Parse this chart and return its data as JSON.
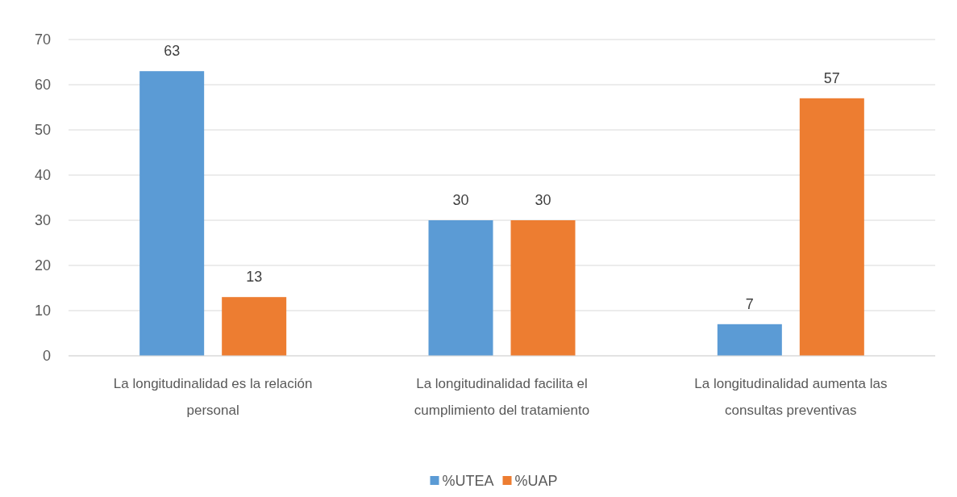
{
  "chart_data": {
    "type": "bar",
    "categories": [
      "La longitudinalidad es la relación personal",
      "La longitudinalidad facilita el cumplimiento del tratamiento",
      "La longitudinalidad aumenta las consultas preventivas"
    ],
    "series": [
      {
        "name": "%UTEA",
        "color": "#5b9bd5",
        "values": [
          63,
          30,
          7
        ]
      },
      {
        "name": "%UAP",
        "color": "#ed7d31",
        "values": [
          13,
          30,
          57
        ]
      }
    ],
    "ylim": [
      0,
      70
    ],
    "yticks": [
      0,
      10,
      20,
      30,
      40,
      50,
      60,
      70
    ],
    "grid": "y",
    "legend": "bottom",
    "data_labels": true
  }
}
